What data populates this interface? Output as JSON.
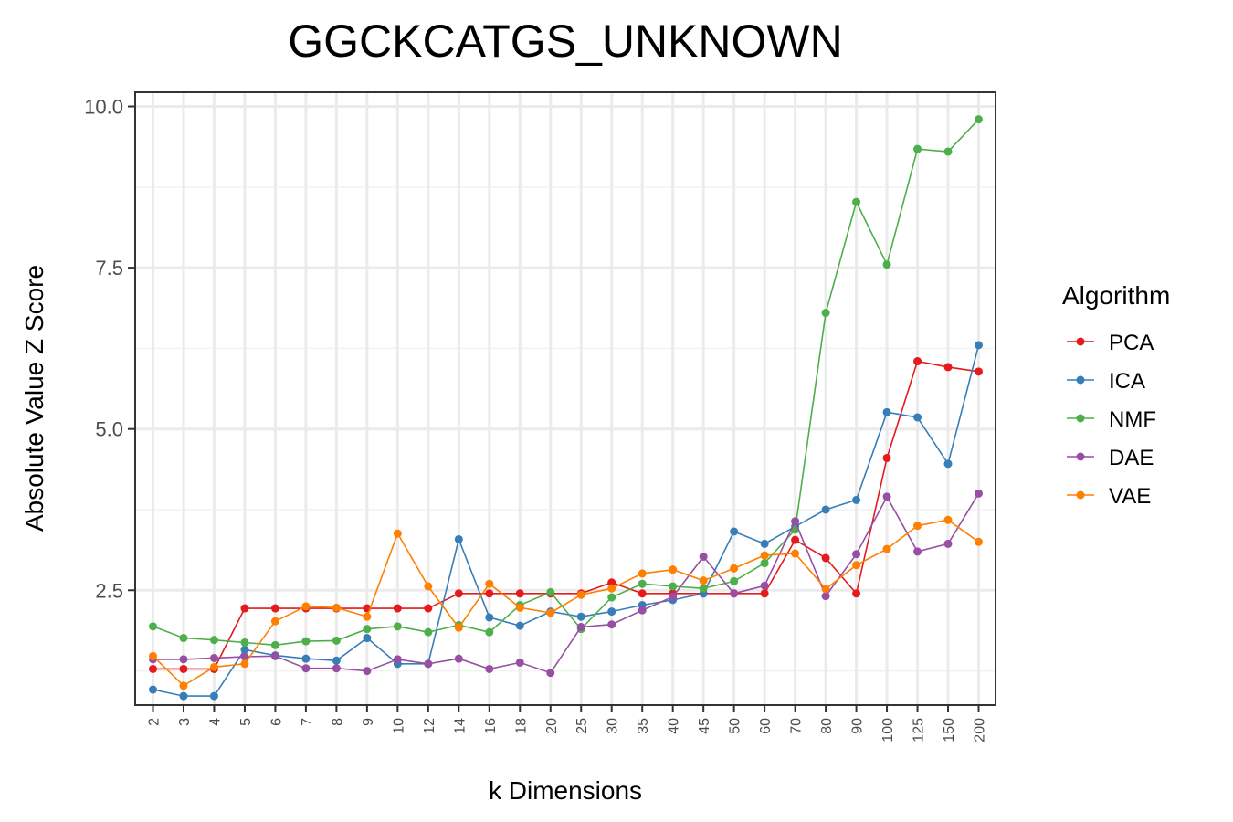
{
  "chart_data": {
    "type": "line",
    "title": "GGCKCATGS_UNKNOWN",
    "xlabel": "k Dimensions",
    "ylabel": "Absolute Value Z Score",
    "categories": [
      "2",
      "3",
      "4",
      "5",
      "6",
      "7",
      "8",
      "9",
      "10",
      "12",
      "14",
      "16",
      "18",
      "20",
      "25",
      "30",
      "35",
      "40",
      "45",
      "50",
      "60",
      "70",
      "80",
      "90",
      "100",
      "125",
      "150",
      "200"
    ],
    "yticks": [
      "2.5",
      "5.0",
      "7.5",
      "10.0"
    ],
    "ylim": [
      0.72,
      10.22
    ],
    "grid": true,
    "legend": {
      "title": "Algorithm",
      "position": "right"
    },
    "series": [
      {
        "name": "PCA",
        "color": "#E41A1C",
        "values": [
          1.28,
          1.28,
          1.28,
          2.22,
          2.22,
          2.22,
          2.22,
          2.22,
          2.22,
          2.22,
          2.45,
          2.45,
          2.45,
          2.45,
          2.45,
          2.62,
          2.45,
          2.45,
          2.45,
          2.45,
          2.45,
          3.28,
          3.0,
          2.45,
          4.55,
          6.05,
          5.96,
          5.89
        ]
      },
      {
        "name": "ICA",
        "color": "#377EB8",
        "values": [
          0.96,
          0.86,
          0.86,
          1.58,
          1.49,
          1.44,
          1.41,
          1.76,
          1.36,
          1.36,
          3.29,
          2.08,
          1.95,
          2.17,
          2.09,
          2.17,
          2.27,
          2.35,
          2.45,
          3.41,
          3.22,
          3.49,
          3.75,
          3.9,
          5.26,
          5.18,
          4.46,
          6.3
        ]
      },
      {
        "name": "NMF",
        "color": "#4DAF4A",
        "values": [
          1.94,
          1.76,
          1.73,
          1.69,
          1.65,
          1.71,
          1.72,
          1.9,
          1.94,
          1.85,
          1.96,
          1.85,
          2.27,
          2.47,
          1.9,
          2.39,
          2.6,
          2.56,
          2.53,
          2.64,
          2.92,
          3.44,
          6.8,
          8.52,
          7.55,
          9.34,
          9.3,
          9.8
        ]
      },
      {
        "name": "DAE",
        "color": "#984EA3",
        "values": [
          1.43,
          1.43,
          1.45,
          1.47,
          1.48,
          1.29,
          1.29,
          1.25,
          1.43,
          1.36,
          1.44,
          1.28,
          1.38,
          1.22,
          1.93,
          1.97,
          2.19,
          2.4,
          3.02,
          2.45,
          2.57,
          3.57,
          2.41,
          3.06,
          3.95,
          3.1,
          3.22,
          4.0
        ]
      },
      {
        "name": "VAE",
        "color": "#FF7F00",
        "values": [
          1.48,
          1.02,
          1.31,
          1.36,
          2.02,
          2.25,
          2.23,
          2.09,
          3.38,
          2.56,
          1.92,
          2.6,
          2.23,
          2.15,
          2.43,
          2.53,
          2.76,
          2.82,
          2.65,
          2.84,
          3.04,
          3.07,
          2.52,
          2.89,
          3.14,
          3.5,
          3.59,
          3.25
        ]
      }
    ]
  }
}
